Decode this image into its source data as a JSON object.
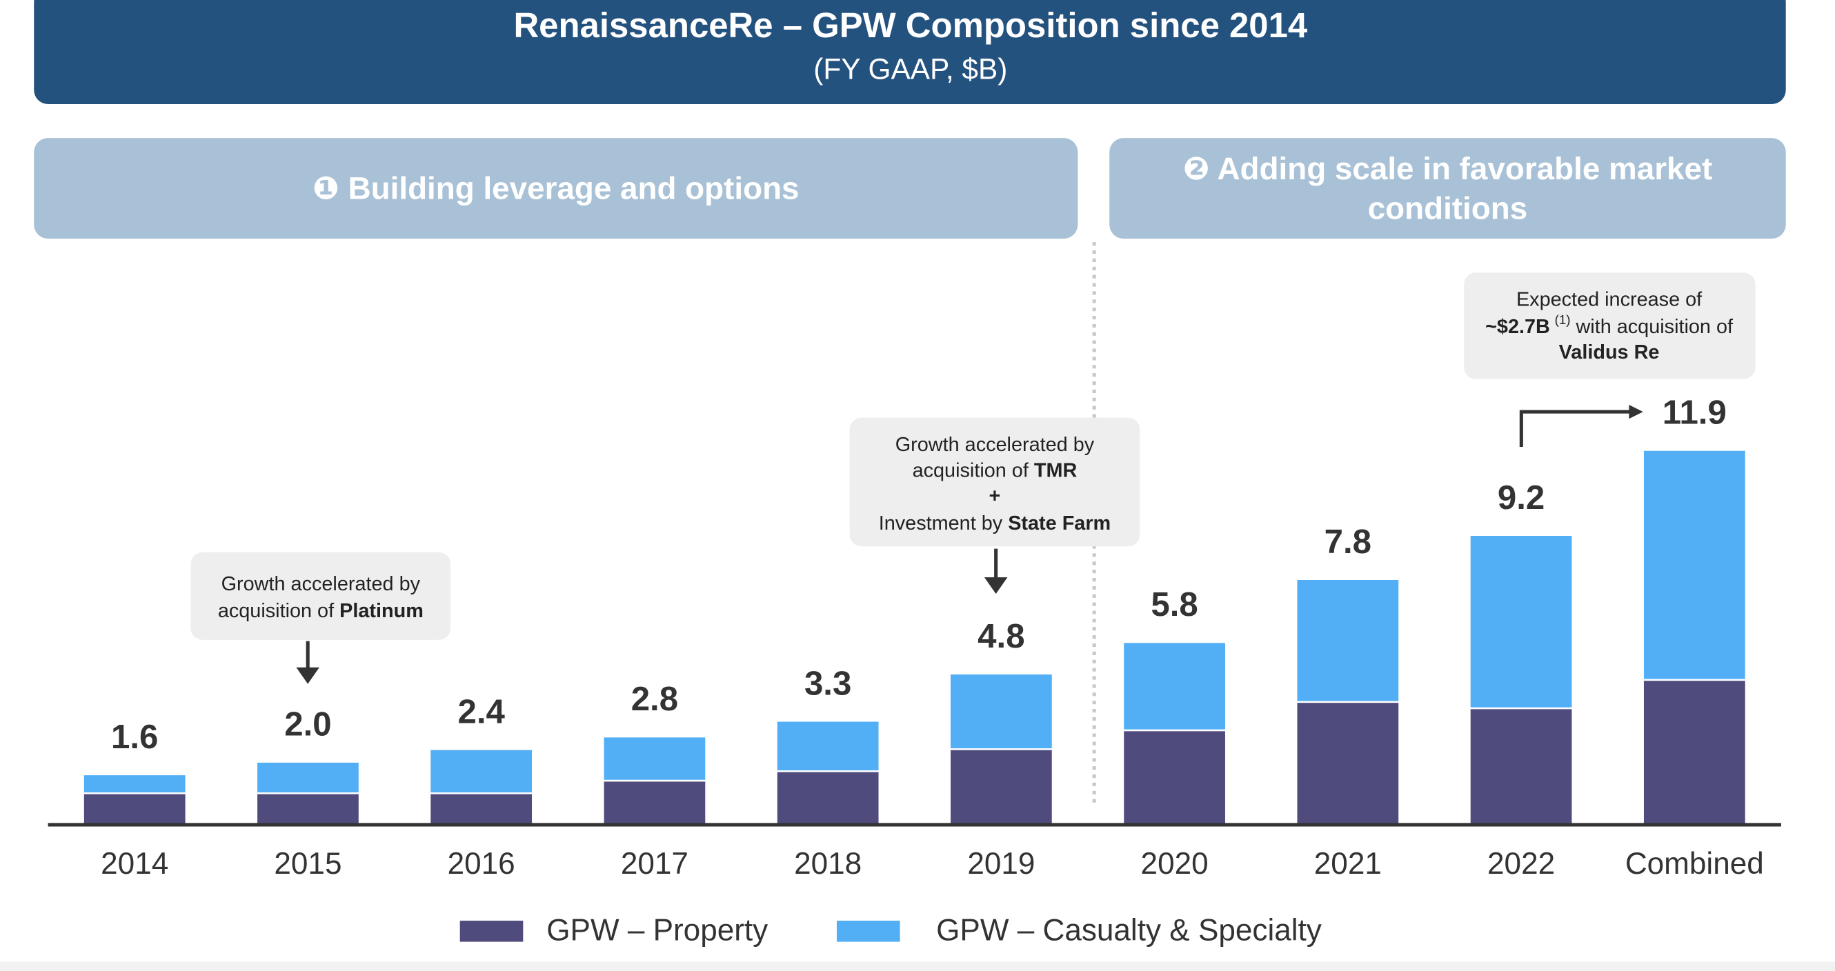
{
  "chart_data": {
    "type": "stacked_bar",
    "title": "RenaissanceRe – GPW Composition since 2014",
    "subtitle": "(FY GAAP, $B)",
    "sections": [
      "❶  Building leverage and options",
      "❷  Adding scale in favorable market",
      "conditions"
    ],
    "categories": [
      "2014",
      "2015",
      "2016",
      "2017",
      "2018",
      "2019",
      "2020",
      "2021",
      "2022",
      "Combined"
    ],
    "series": [
      {
        "name": "GPW – Property",
        "color": "#4f4b7d",
        "values": [
          1.0,
          1.0,
          1.0,
          1.4,
          1.7,
          2.4,
          3.0,
          3.9,
          3.7,
          4.6
        ]
      },
      {
        "name": "GPW – Casualty & Specialty",
        "color": "#52aef5",
        "values": [
          0.6,
          1.0,
          1.4,
          1.4,
          1.6,
          2.4,
          2.8,
          3.9,
          5.5,
          7.3
        ]
      }
    ],
    "totals": {
      "values": [
        1.6,
        2,
        2.4,
        2.8,
        3.3,
        4.8,
        5.8,
        7.8,
        9.2,
        11.9
      ],
      "value_labels": [
        "1.6",
        "2.0",
        "2.4",
        "2.8",
        "3.3",
        "4.8",
        "5.8",
        "7.8",
        "9.2",
        "11.9"
      ]
    },
    "ylim": [
      0,
      13
    ],
    "annotations": {
      "platinum": {
        "line1": "Growth accelerated by",
        "line2": "acquisition of ",
        "bold": "Platinum"
      },
      "tmr": {
        "line1": "Growth accelerated by",
        "line2": "acquisition of ",
        "bold1": "TMR",
        "plus": "+",
        "line4": "Investment by ",
        "bold2": "State Farm"
      },
      "validus": {
        "line1": "Expected increase of",
        "bold1": "~$2.7B",
        "sup": "(1)",
        "line2": " with acquisition of",
        "bold2": "Validus Re"
      }
    }
  }
}
